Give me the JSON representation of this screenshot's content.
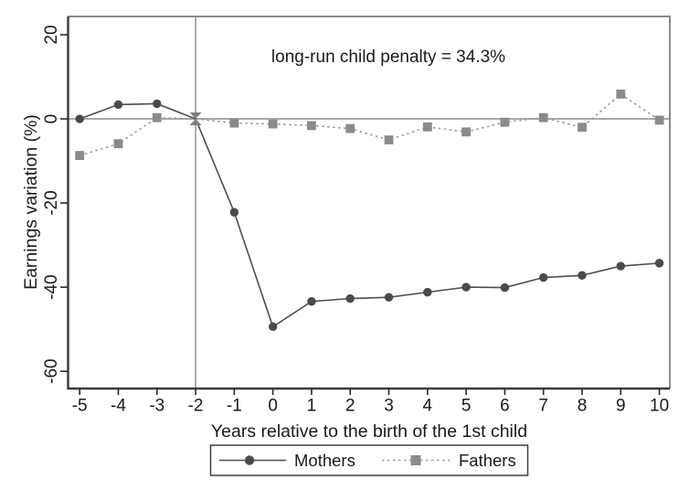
{
  "chart_data": {
    "type": "line",
    "title": "",
    "annotation": "long-run child penalty = 34.3%",
    "xlabel": "Years relative to the birth of the 1st child",
    "ylabel": "Earnings variation (%)",
    "x": [
      -5,
      -4,
      -3,
      -2,
      -1,
      0,
      1,
      2,
      3,
      4,
      5,
      6,
      7,
      8,
      9,
      10
    ],
    "x_tick_labels": [
      "-5",
      "-4",
      "-3",
      "-2",
      "-1",
      "0",
      "1",
      "2",
      "3",
      "4",
      "5",
      "6",
      "7",
      "8",
      "9",
      "10"
    ],
    "y_ticks": [
      20,
      0,
      -20,
      -40,
      -60
    ],
    "y_tick_labels": [
      "20",
      "0",
      "-20",
      "-40",
      "-60"
    ],
    "xlim": [
      -5.3,
      10.27
    ],
    "ylim": [
      -64.1,
      24.35
    ],
    "grid": false,
    "zero_line": true,
    "reference_vline_x": -2,
    "series": [
      {
        "name": "Mothers",
        "marker": "circle",
        "line_style": "solid",
        "marker_color": "#4a4a4a",
        "line_color": "#4d4d4d",
        "values": [
          0,
          3.4,
          3.6,
          0,
          -22.2,
          -49.4,
          -43.4,
          -42.7,
          -42.4,
          -41.2,
          -40.0,
          -40.1,
          -37.7,
          -37.2,
          -35.0,
          -34.3
        ]
      },
      {
        "name": "Fathers",
        "marker": "square",
        "line_style": "dotted",
        "marker_color": "#8a8a8a",
        "line_color": "#9a9a9a",
        "values": [
          -8.7,
          -5.9,
          0.3,
          0,
          -1.0,
          -1.2,
          -1.6,
          -2.3,
          -5.0,
          -1.9,
          -3.1,
          -0.8,
          0.3,
          -2.0,
          5.9,
          -0.3
        ]
      }
    ],
    "reference_marker": {
      "x": -2,
      "y": 0,
      "shape": "bowtie",
      "color": "#808080"
    },
    "legend": {
      "position": "bottom-center",
      "entries": [
        "Mothers",
        "Fathers"
      ]
    },
    "colors": {
      "background": "#ffffff",
      "zero_line": "#a8a8a8",
      "reference_line": "#9a9a9a",
      "axis": "#3a3a3a",
      "border": "#8a8a8a",
      "tick": "#2a2a2a",
      "text": "#1a1a1a",
      "legend_border": "#3f3f3f"
    }
  }
}
